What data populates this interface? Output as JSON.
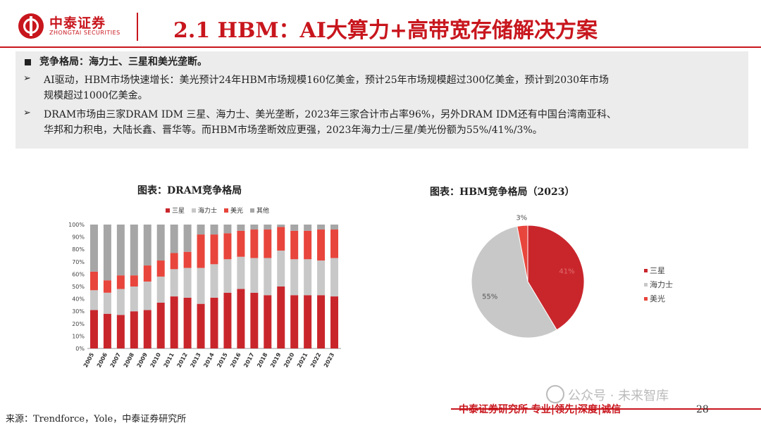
{
  "header": {
    "logo_cn": "中泰证券",
    "logo_en": "ZHONGTAI SECURITIES",
    "title": "2.1 HBM：AI大算力+高带宽存储解决方案"
  },
  "summary": {
    "heading": "竞争格局：海力士、三星和美光垄断。",
    "bullet1_line1": "AI驱动，HBM市场快速增长：美光预计24年HBM市场规模160亿美金，预计25年市场规模超过300亿美金，预计到2030年市场",
    "bullet1_line2": "规模超过1000亿美金。",
    "bullet2_line1": "DRAM市场由三家DRAM IDM 三星、海力士、美光垄断，2023年三家合计市占率96%，另外DRAM IDM还有中国台湾南亚科、",
    "bullet2_line2": "华邦和力积电，大陆长鑫、晋华等。而HBM市场垄断效应更强，2023年海力士/三星/美光份额为55%/41%/3%。"
  },
  "colors": {
    "brand_red": "#c8161d",
    "samsung": "#c9262c",
    "hynix": "#c8c8c8",
    "micron": "#e8453c",
    "other": "#a6a6a6"
  },
  "chart_data": [
    {
      "type": "bar",
      "stacked": true,
      "title": "图表：DRAM竞争格局",
      "categories": [
        "2005",
        "2006",
        "2007",
        "2008",
        "2009",
        "2010",
        "2011",
        "2012",
        "2013",
        "2014",
        "2015",
        "2016",
        "2017",
        "2018",
        "2019",
        "2020",
        "2021",
        "2022",
        "2023"
      ],
      "series": [
        {
          "name": "三星",
          "color": "#c9262c",
          "values": [
            31,
            28,
            27,
            30,
            31,
            37,
            42,
            41,
            36,
            41,
            45,
            48,
            45,
            43,
            50,
            43,
            43,
            43,
            42
          ]
        },
        {
          "name": "海力士",
          "color": "#c8c8c8",
          "values": [
            16,
            17,
            21,
            20,
            23,
            21,
            22,
            24,
            29,
            27,
            27,
            26,
            28,
            30,
            29,
            29,
            29,
            28,
            31
          ]
        },
        {
          "name": "美光",
          "color": "#e8453c",
          "values": [
            15,
            10,
            11,
            9,
            13,
            13,
            13,
            13,
            27,
            24,
            21,
            21,
            23,
            23,
            19,
            23,
            23,
            25,
            23
          ]
        },
        {
          "name": "其他",
          "color": "#a6a6a6",
          "values": [
            38,
            45,
            41,
            41,
            33,
            29,
            23,
            22,
            8,
            8,
            7,
            5,
            4,
            4,
            2,
            5,
            5,
            4,
            4
          ]
        }
      ],
      "yticks": [
        "0%",
        "10%",
        "20%",
        "30%",
        "40%",
        "50%",
        "60%",
        "70%",
        "80%",
        "90%",
        "100%"
      ],
      "ylim": [
        0,
        100
      ],
      "legend": "top"
    },
    {
      "type": "pie",
      "title": "图表：HBM竞争格局（2023）",
      "slices": [
        {
          "name": "三星",
          "value": 41,
          "label": "41%",
          "color": "#c9262c"
        },
        {
          "name": "海力士",
          "value": 55,
          "label": "55%",
          "color": "#c8c8c8"
        },
        {
          "name": "美光",
          "value": 3,
          "label": "3%",
          "color": "#e8453c"
        }
      ],
      "legend": "right"
    }
  ],
  "footer": {
    "source": "来源：Trendforce，Yole，中泰证券研究所",
    "slogan": "中泰证券研究所 专业|领先|深度|诚信",
    "page": "28",
    "watermark": "公众号 · 未来智库"
  }
}
